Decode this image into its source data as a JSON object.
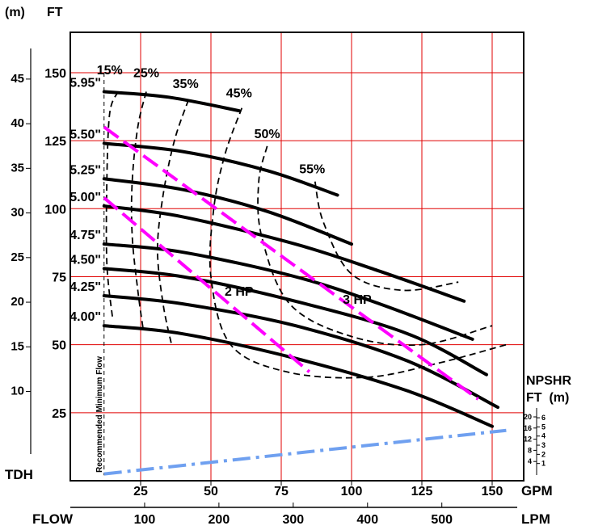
{
  "chart_data": {
    "type": "line",
    "title": "",
    "axes": {
      "ft_header": "FT",
      "m_header": "(m)",
      "x_gpm_unit": "GPM",
      "x_lpm_unit": "LPM",
      "x_bottom_title": "FLOW",
      "y_bottom_title": "TDH",
      "x_gpm_ticks": [
        "25",
        "50",
        "75",
        "100",
        "125",
        "150"
      ],
      "x_lpm_ticks": [
        "100",
        "200",
        "300",
        "400",
        "500"
      ],
      "y_ft_ticks": [
        "25",
        "50",
        "75",
        "100",
        "125",
        "150"
      ],
      "y_m_ticks": [
        "10",
        "15",
        "20",
        "25",
        "30",
        "35",
        "40",
        "45"
      ],
      "xlim_gpm": [
        0,
        155
      ],
      "ylim_ft": [
        0,
        165
      ],
      "grid": true
    },
    "npshr": {
      "title": "NPSHR",
      "units": "FT  (m)",
      "ft_ticks": [
        "4",
        "8",
        "12",
        "16",
        "20"
      ],
      "m_ticks": [
        "1",
        "2",
        "3",
        "4",
        "5",
        "6"
      ],
      "x": [
        12,
        155
      ],
      "y_ft": [
        2.5,
        18.5
      ]
    },
    "min_flow_label": "Recommended Minimum Flow",
    "min_flow_gpm": 12,
    "series": [
      {
        "name": "5.95\"",
        "x": [
          12,
          35,
          60
        ],
        "y": [
          143,
          141,
          136
        ]
      },
      {
        "name": "5.50\"",
        "x": [
          12,
          40,
          70,
          95
        ],
        "y": [
          124,
          121,
          114,
          105
        ]
      },
      {
        "name": "5.25\"",
        "x": [
          12,
          40,
          70,
          100
        ],
        "y": [
          111,
          107,
          99,
          87
        ]
      },
      {
        "name": "5.00\"",
        "x": [
          12,
          40,
          80,
          110,
          140
        ],
        "y": [
          101,
          97,
          87,
          77,
          66
        ]
      },
      {
        "name": "4.75\"",
        "x": [
          12,
          40,
          80,
          110,
          143
        ],
        "y": [
          87,
          84,
          75,
          65,
          52
        ]
      },
      {
        "name": "4.50\"",
        "x": [
          12,
          40,
          80,
          120,
          148
        ],
        "y": [
          78,
          75,
          66,
          54,
          39
        ]
      },
      {
        "name": "4.25\"",
        "x": [
          12,
          40,
          80,
          120,
          152
        ],
        "y": [
          68,
          65,
          57,
          44,
          27
        ]
      },
      {
        "name": "4.00\"",
        "x": [
          12,
          40,
          80,
          120,
          150
        ],
        "y": [
          57,
          54,
          45,
          33,
          20
        ]
      }
    ],
    "efficiency_curves": [
      {
        "label": "15%",
        "x": [
          17,
          14,
          13,
          13,
          15
        ],
        "y": [
          143,
          135,
          110,
          80,
          60
        ]
      },
      {
        "label": "25%",
        "x": [
          27,
          24,
          22,
          22,
          24,
          26
        ],
        "y": [
          143,
          130,
          110,
          90,
          70,
          55
        ]
      },
      {
        "label": "35%",
        "x": [
          42,
          37,
          33,
          31,
          33,
          36
        ],
        "y": [
          140,
          125,
          105,
          85,
          65,
          50
        ]
      },
      {
        "label": "45%",
        "x": [
          61,
          55,
          51,
          50,
          57,
          77,
          105,
          130,
          155
        ],
        "y": [
          137,
          120,
          100,
          75,
          50,
          40,
          38,
          43,
          50
        ]
      },
      {
        "label": "50%",
        "x": [
          70,
          67,
          68,
          78,
          100,
          125,
          150
        ],
        "y": [
          123,
          110,
          90,
          65,
          53,
          50,
          57
        ]
      },
      {
        "label": "55%",
        "x": [
          87,
          90,
          100,
          118,
          138
        ],
        "y": [
          110,
          95,
          76,
          70,
          73
        ]
      }
    ],
    "power_lines": [
      {
        "label": "3 HP",
        "x": [
          12,
          145
        ],
        "y": [
          130,
          30
        ]
      },
      {
        "label": "2 HP",
        "x": [
          12,
          85
        ],
        "y": [
          104,
          40
        ]
      }
    ],
    "colors": {
      "grid": "#e00000",
      "curves": "#000000",
      "efficiency": "#000000",
      "hp_lines": "#ff00ff",
      "npshr": "#6fa0f0"
    }
  }
}
